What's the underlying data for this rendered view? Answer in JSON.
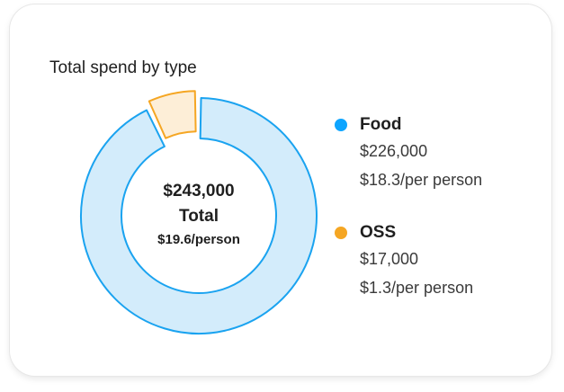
{
  "card": {
    "title": "Total spend by type"
  },
  "center": {
    "amount": "$243,000",
    "label": "Total",
    "per_person": "$19.6/person"
  },
  "legend": [
    {
      "name": "Food",
      "amount": "$226,000",
      "per_person": "$18.3/per person",
      "color": "#0ea5ff"
    },
    {
      "name": "OSS",
      "amount": "$17,000",
      "per_person": "$1.3/per person",
      "color": "#f5a623"
    }
  ],
  "chart_data": {
    "type": "pie",
    "title": "Total spend by type",
    "categories": [
      "Food",
      "OSS"
    ],
    "values": [
      226000,
      17000
    ],
    "colors": {
      "Food": {
        "stroke": "#1aa3f0",
        "fill": "#d3ecfb"
      },
      "OSS": {
        "stroke": "#f5a623",
        "fill": "#fdeed7"
      }
    },
    "donut": true,
    "legend": "right"
  }
}
